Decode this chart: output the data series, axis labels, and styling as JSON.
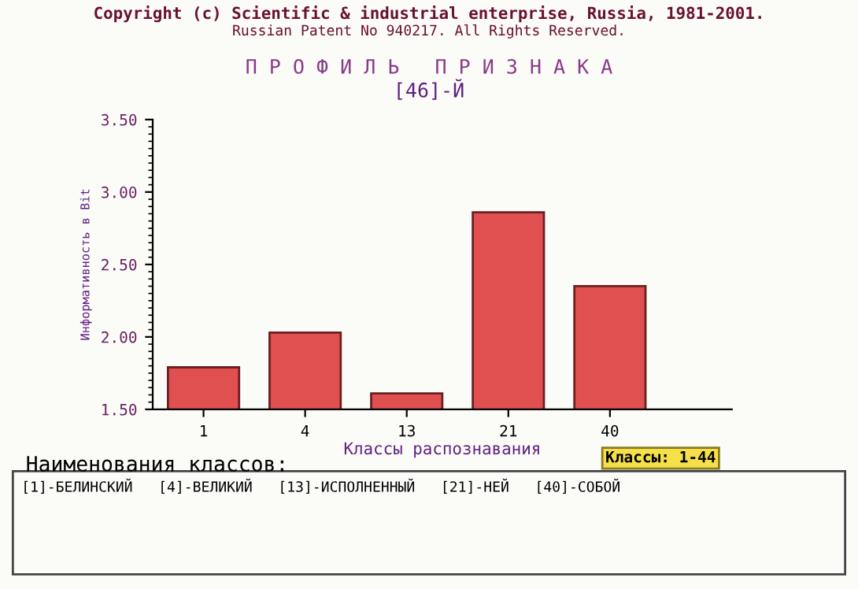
{
  "chart_data": {
    "type": "bar",
    "title": "П Р О Ф И Л Ь   П Р И З Н А К А",
    "subtitle": "[46]-Й",
    "xlabel": "Классы распознавания",
    "ylabel": "Информативность в Bit",
    "categories": [
      "1",
      "4",
      "13",
      "21",
      "40"
    ],
    "values": [
      1.79,
      2.03,
      1.61,
      2.86,
      2.35
    ],
    "color": "#e05050",
    "ylim": [
      1.5,
      3.5
    ],
    "yticks": [
      {
        "value": 1.5,
        "label": "1.50"
      },
      {
        "value": 2.0,
        "label": "2.00"
      },
      {
        "value": 2.5,
        "label": "2.50"
      },
      {
        "value": 3.0,
        "label": "3.00"
      },
      {
        "value": 3.5,
        "label": "3.50"
      }
    ],
    "grid": false,
    "annotations": [
      "Copyright (c) Scientific & industrial enterprise, Russia, 1981-2001.",
      "Russian Patent No 940217. All Rights Reserved.",
      "Классы: 1-44",
      "Наименования классов:",
      "[1]-БЕЛИНСКИЙ   [4]-ВЕЛИКИЙ   [13]-ИСПОЛНЕННЫЙ   [21]-НЕЙ   [40]-СОБОЙ"
    ]
  }
}
